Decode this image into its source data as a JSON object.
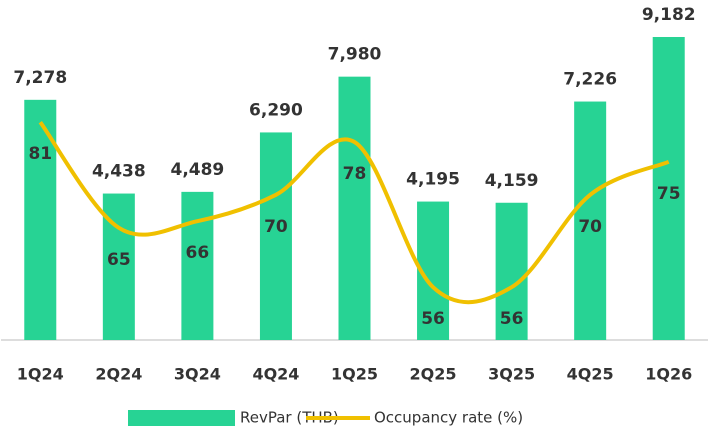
{
  "chart_data": {
    "type": "bar_line",
    "categories": [
      "1Q24",
      "2Q24",
      "3Q24",
      "4Q24",
      "1Q25",
      "2Q25",
      "3Q25",
      "4Q25",
      "1Q26"
    ],
    "series": [
      {
        "name": "RevPar (THB)",
        "type": "bar",
        "color": "#27d394",
        "values": [
          7278,
          4438,
          4489,
          6290,
          7980,
          4195,
          4159,
          7226,
          9182
        ],
        "value_labels": [
          "7,278",
          "4,438",
          "4,489",
          "6,290",
          "7,980",
          "4,195",
          "4,159",
          "7,226",
          "9,182"
        ]
      },
      {
        "name": "Occupancy rate (%)",
        "type": "line",
        "axis": "y2",
        "color": "#f0c000",
        "values": [
          81,
          65,
          66,
          70,
          78,
          56,
          56,
          70,
          75
        ]
      }
    ],
    "ylim": [
      0,
      10000
    ],
    "y2lim": [
      48,
      98
    ],
    "legend": "bottom"
  }
}
